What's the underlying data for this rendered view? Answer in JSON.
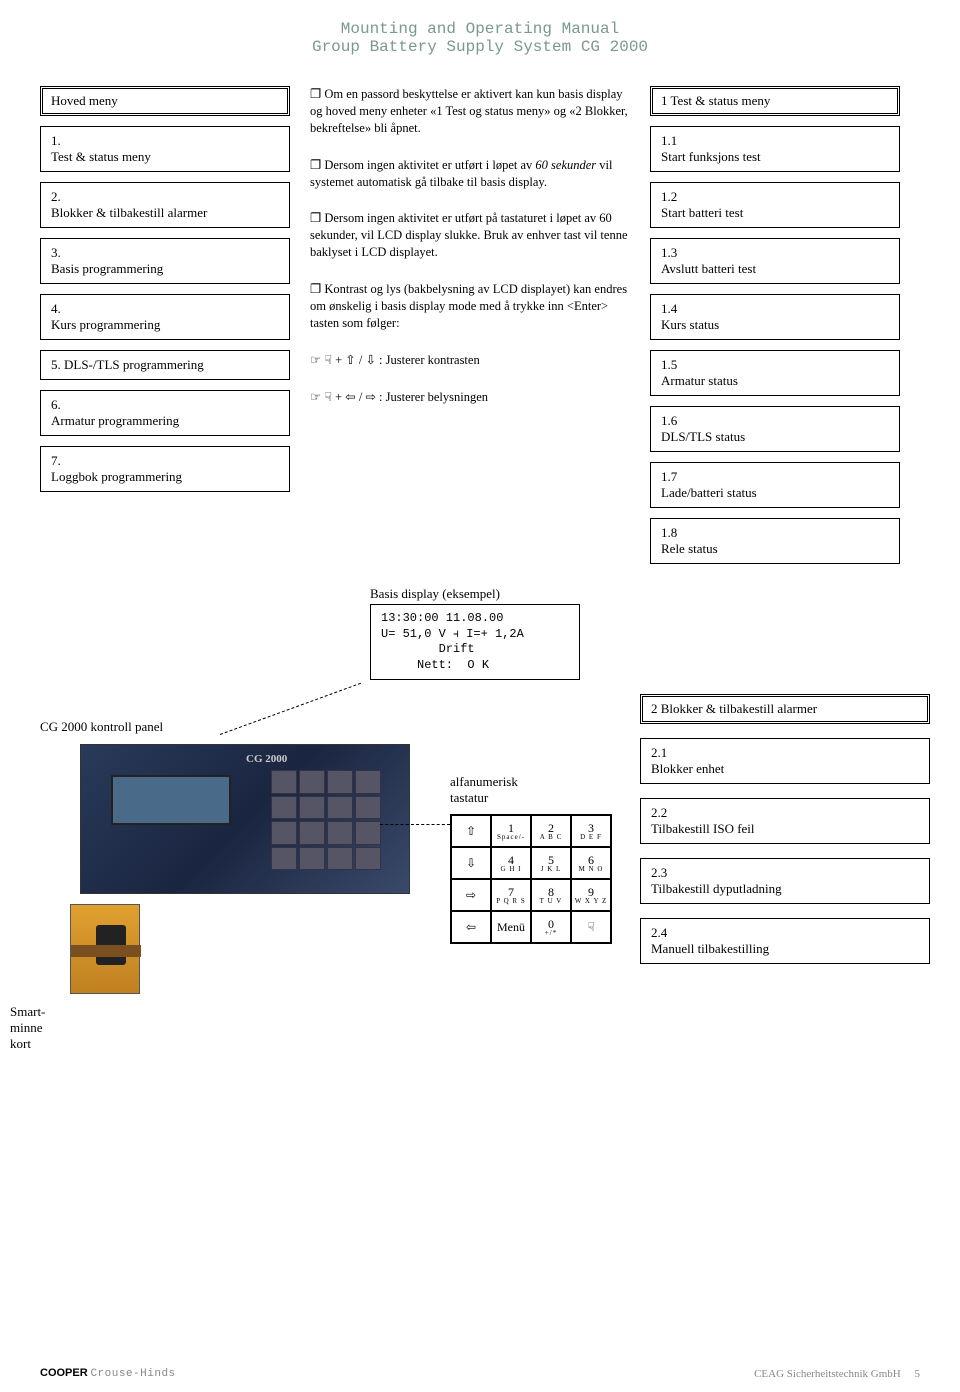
{
  "header": {
    "line1": "Mounting and Operating Manual",
    "line2": "Group Battery Supply System CG 2000"
  },
  "left_menu": {
    "title": "Hoved meny",
    "items": [
      "1.\nTest & status meny",
      "2.\nBlokker & tilbakestill alarmer",
      "3.\nBasis programmering",
      "4.\nKurs programmering",
      "5. DLS-/TLS programmering",
      "6.\nArmatur programmering",
      "7.\nLoggbok programmering"
    ]
  },
  "mid_text": {
    "p1_pre": "Om en passord beskyttelse er aktivert kan kun basis display og hoved meny enheter «1 Test og status meny» og «2 Blokker, bekreftelse» bli åpnet.",
    "p2_pre": "Dersom ingen aktivitet er utført i løpet av ",
    "p2_italic": "60 sekunder",
    "p2_post": " vil systemet automatisk gå tilbake til basis display.",
    "p3": "Dersom ingen aktivitet er utført på tastaturet i løpet av 60 sekunder, vil LCD display slukke. Bruk av enhver tast vil tenne baklyset i LCD displayet.",
    "p4": "Kontrast og lys (bakbelysning av LCD displayet) kan endres om ønskelig i basis display mode med å trykke inn <Enter> tasten som følger:",
    "adj1": "☞ ☟  + ⇧ / ⇩ :    Justerer kontrasten",
    "adj2": "☞ ☟  +  ⇦ /  ⇨ : Justerer belysningen"
  },
  "right_menu": {
    "title": "1    Test & status meny",
    "items": [
      "1.1\nStart funksjons test",
      "1.2\nStart batteri test",
      "1.3\nAvslutt batteri test",
      "1.4\nKurs status",
      "1.5\nArmatur status",
      "1.6\nDLS/TLS status",
      "1.7\nLade/batteri status",
      "1.8\nRele status"
    ]
  },
  "display": {
    "label": "Basis display (eksempel)",
    "l1": "13:30:00   11.08.00",
    "l2": "U= 51,0 V ⫞ I=+ 1,2A",
    "l3": "        Drift",
    "l4": "     Nett:  O K"
  },
  "keypad": {
    "label1": "alfanumerisk",
    "label2": "tastatur",
    "cells": [
      [
        "⇧",
        ""
      ],
      [
        "1",
        "Space/-"
      ],
      [
        "2",
        "A B C"
      ],
      [
        "3",
        "D E F"
      ],
      [
        "⇩",
        ""
      ],
      [
        "4",
        "G H I"
      ],
      [
        "5",
        "J K L"
      ],
      [
        "6",
        "M N O"
      ],
      [
        "⇨",
        ""
      ],
      [
        "7",
        "P Q R S"
      ],
      [
        "8",
        "T U V"
      ],
      [
        "9",
        "W X Y Z"
      ],
      [
        "⇦",
        ""
      ],
      [
        "Menü",
        ""
      ],
      [
        "0",
        "+/*"
      ],
      [
        "☟",
        ""
      ]
    ]
  },
  "right_lower": {
    "title": "2 Blokker & tilbakestill alarmer",
    "items": [
      "2.1\nBlokker enhet",
      "2.2\nTilbakestill ISO feil",
      "2.3\nTilbakestill dyputladning",
      "2.4\nManuell tilbakestilling"
    ]
  },
  "labels": {
    "panel": "CG 2000 kontroll panel",
    "smart1": "Smart-",
    "smart2": "minne",
    "smart3": "kort",
    "panel_cg": "CG 2000"
  },
  "footer": {
    "brand": "COOPER",
    "ch": "Crouse-Hinds",
    "right": "CEAG Sicherheitstechnik GmbH",
    "page": "5"
  },
  "colors": {
    "header": "#7a9a8a",
    "text": "#000000",
    "bg": "#ffffff",
    "footer_gray": "#888888"
  }
}
